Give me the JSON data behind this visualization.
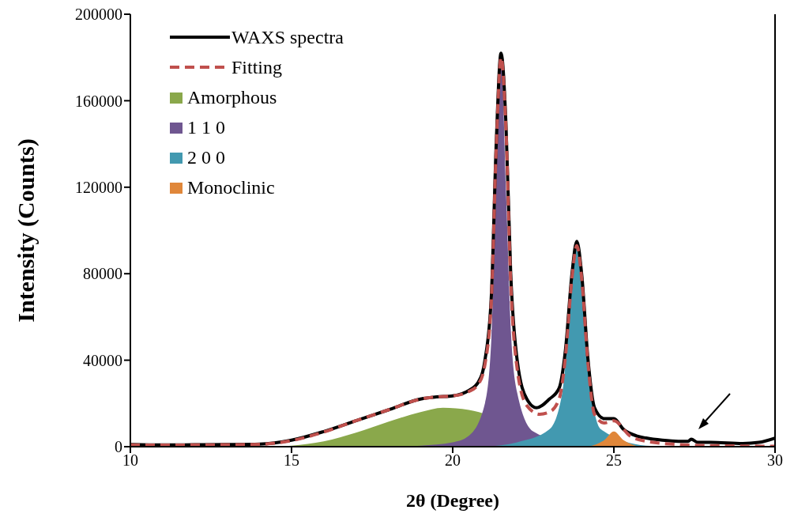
{
  "chart_data": {
    "type": "line",
    "xlabel": "2θ (Degree)",
    "ylabel": "Intensity (Counts)",
    "xlim": [
      10,
      30
    ],
    "xticks": [
      10,
      15,
      20,
      25,
      30
    ],
    "ylim": [
      0,
      200000
    ],
    "yticks": [
      0,
      40000,
      80000,
      120000,
      160000,
      200000
    ],
    "legend": "top left",
    "series": [
      {
        "name": "WAXS spectra",
        "color": "#000000",
        "line_style": "solid",
        "x": [
          10,
          11,
          12,
          13,
          14,
          15,
          16,
          17,
          18,
          19,
          19.5,
          20,
          20.5,
          20.8,
          21,
          21.2,
          21.35,
          21.5,
          21.65,
          21.8,
          22,
          22.3,
          22.6,
          23,
          23.3,
          23.5,
          23.7,
          23.85,
          24,
          24.2,
          24.4,
          24.7,
          25,
          25.3,
          25.7,
          26,
          26.5,
          27,
          27.3,
          27.4,
          27.6,
          28,
          29,
          29.5,
          30
        ],
        "values": [
          1000,
          800,
          900,
          1000,
          1200,
          3000,
          7000,
          12000,
          17000,
          22000,
          23000,
          23500,
          26000,
          30000,
          40000,
          70000,
          140000,
          182000,
          150000,
          80000,
          40000,
          22000,
          18000,
          22000,
          27000,
          45000,
          80000,
          95000,
          80000,
          40000,
          18000,
          13000,
          13000,
          8000,
          5000,
          4000,
          3000,
          2500,
          2500,
          3500,
          2000,
          2000,
          1500,
          2000,
          4000
        ]
      },
      {
        "name": "Fitting",
        "color": "#c0504d",
        "line_style": "dashed",
        "x": [
          10,
          11,
          12,
          13,
          14,
          15,
          16,
          17,
          18,
          19,
          19.5,
          20,
          20.5,
          20.8,
          21,
          21.2,
          21.35,
          21.5,
          21.65,
          21.8,
          22,
          22.3,
          22.7,
          23,
          23.3,
          23.5,
          23.7,
          23.85,
          24,
          24.2,
          24.4,
          24.7,
          25,
          25.5,
          26,
          27,
          28,
          29,
          30
        ],
        "values": [
          800,
          700,
          800,
          900,
          1100,
          2800,
          6800,
          12000,
          17000,
          22000,
          23000,
          23500,
          25500,
          29000,
          38000,
          68000,
          138000,
          180000,
          148000,
          76000,
          36000,
          19000,
          15000,
          16000,
          22000,
          42000,
          78000,
          93000,
          78000,
          38000,
          15000,
          11000,
          12000,
          5000,
          2500,
          1000,
          500,
          300,
          200
        ]
      },
      {
        "name": "Amorphous",
        "type": "area",
        "color": "#8aa84b",
        "x": [
          14.5,
          15,
          16,
          17,
          18,
          19,
          19.7,
          20.5,
          21,
          21.5,
          22,
          22.5,
          23
        ],
        "values": [
          0,
          500,
          2500,
          6500,
          11500,
          16000,
          18000,
          17000,
          null,
          null,
          null,
          null,
          0
        ]
      },
      {
        "name": "1 1 0",
        "type": "area",
        "color": "#6f5690",
        "x": [
          18,
          19,
          20,
          20.5,
          21,
          21.2,
          21.35,
          21.5,
          21.65,
          21.8,
          22,
          22.5,
          23,
          24
        ],
        "values": [
          0,
          500,
          2000,
          5000,
          20000,
          50000,
          120000,
          180000,
          120000,
          55000,
          25000,
          7000,
          null,
          0
        ]
      },
      {
        "name": "2 0 0",
        "type": "area",
        "color": "#4299b0",
        "x": [
          21,
          22,
          23,
          23.4,
          23.6,
          23.85,
          24.1,
          24.3,
          24.6,
          25,
          26,
          27
        ],
        "values": [
          0,
          2000,
          8000,
          25000,
          55000,
          92000,
          55000,
          25000,
          8000,
          null,
          500,
          0
        ]
      },
      {
        "name": "Monoclinic",
        "type": "area",
        "color": "#e0873a",
        "x": [
          24.2,
          24.7,
          25,
          25.3,
          25.8
        ],
        "values": [
          0,
          3000,
          7000,
          3000,
          0
        ]
      }
    ]
  }
}
